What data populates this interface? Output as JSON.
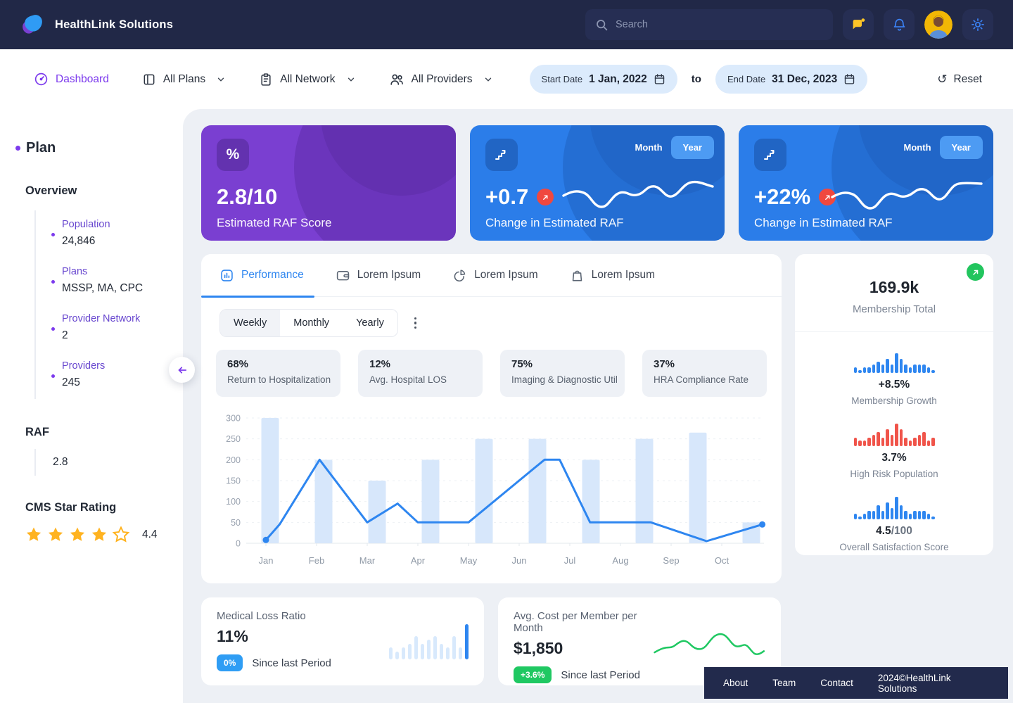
{
  "nav": {
    "brand": "HealthLink Solutions",
    "search_placeholder": "Search"
  },
  "filters": {
    "dashboard": "Dashboard",
    "all_plans": "All Plans",
    "all_network": "All Network",
    "all_providers": "All Providers",
    "start_date_label": "Start Date",
    "start_date_value": "1 Jan, 2022",
    "to_label": "to",
    "end_date_label": "End Date",
    "end_date_value": "31 Dec, 2023",
    "reset_label": "Reset"
  },
  "sidebar": {
    "title": "Plan",
    "section": "Overview",
    "items": [
      {
        "label": "Population",
        "value": "24,846"
      },
      {
        "label": "Plans",
        "value": "MSSP,  MA, CPC"
      },
      {
        "label": "Provider Network",
        "value": "2"
      },
      {
        "label": "Providers",
        "value": "245"
      }
    ],
    "raf_title": "RAF",
    "raf_value": "2.8",
    "cms_title": "CMS Star Rating",
    "cms_rating": 4.4,
    "cms_value": "4.4",
    "star_color": "#ffb320"
  },
  "stat_cards": [
    {
      "icon_glyph": "%",
      "value": "2.8/10",
      "label": "Estimated RAF Score"
    },
    {
      "value": "+0.7",
      "label": "Change in Estimated RAF",
      "month_label": "Month",
      "year_label": "Year"
    },
    {
      "value": "+22%",
      "label": "Change in Estimated RAF",
      "month_label": "Month",
      "year_label": "Year"
    }
  ],
  "performance": {
    "tabs": [
      {
        "label": "Performance"
      },
      {
        "label": "Lorem Ipsum"
      },
      {
        "label": "Lorem Ipsum"
      },
      {
        "label": "Lorem Ipsum"
      }
    ],
    "period_options": [
      "Weekly",
      "Monthly",
      "Yearly"
    ],
    "kpis": [
      {
        "value": "68%",
        "label": "Return to Hospitalization"
      },
      {
        "value": "12%",
        "label": "Avg. Hospital LOS"
      },
      {
        "value": "75%",
        "label": "Imaging & Diagnostic Util"
      },
      {
        "value": "37%",
        "label": "HRA Compliance Rate"
      }
    ]
  },
  "chart_data": {
    "type": "line+bar",
    "months": [
      "Jan",
      "Feb",
      "Mar",
      "Apr",
      "May",
      "Jun",
      "Jul",
      "Aug",
      "Sep",
      "Oct"
    ],
    "y_ticks": [
      0,
      50,
      100,
      150,
      200,
      250,
      300
    ],
    "ylim": [
      0,
      300
    ],
    "grid": "dashed-horizontal",
    "bar_values": [
      300,
      200,
      150,
      200,
      250,
      250,
      200,
      250,
      265,
      50
    ],
    "line_points_month_value": [
      [
        0,
        8
      ],
      [
        0.27,
        45
      ],
      [
        1.06,
        200
      ],
      [
        2.0,
        50
      ],
      [
        2.6,
        95
      ],
      [
        3.0,
        50
      ],
      [
        4.0,
        50
      ],
      [
        5.5,
        200
      ],
      [
        5.8,
        200
      ],
      [
        6.4,
        50
      ],
      [
        7.6,
        50
      ],
      [
        8.7,
        5
      ],
      [
        9.8,
        45
      ]
    ],
    "line_color": "#2e86f0",
    "bar_color": "#d7e7fb"
  },
  "membership": {
    "total": "169.9k",
    "total_label": "Membership Total",
    "stats": [
      {
        "value": "+8.5%",
        "suffix": "",
        "label": "Membership Growth",
        "color": "#2e86f0",
        "bars": [
          2,
          1,
          2,
          2,
          3,
          4,
          3,
          5,
          3,
          7,
          5,
          3,
          2,
          3,
          3,
          3,
          2,
          1
        ]
      },
      {
        "value": "3.7%",
        "suffix": "",
        "label": "High Risk Population",
        "color": "#f0544a",
        "bars": [
          3,
          2,
          2,
          3,
          4,
          5,
          3,
          6,
          4,
          8,
          6,
          3,
          2,
          3,
          4,
          5,
          2,
          3
        ]
      },
      {
        "value": "4.5",
        "suffix": "/100",
        "label": "Overall Satisfaction Score",
        "color": "#2e86f0",
        "bars": [
          2,
          1,
          2,
          3,
          3,
          5,
          3,
          6,
          4,
          8,
          5,
          3,
          2,
          3,
          3,
          3,
          2,
          1
        ]
      }
    ]
  },
  "bottom_cards": [
    {
      "title": "Medical Loss Ratio",
      "value": "11%",
      "badge": "0%",
      "badge_color": "#2f9df4",
      "note": "Since last Period",
      "bars": [
        3,
        2,
        3,
        4,
        6,
        4,
        5,
        6,
        4,
        3,
        6,
        3,
        8
      ],
      "bars_color": "#d8e9fc",
      "bars_accent": "#2e86f0"
    },
    {
      "title": "Avg. Cost per Member per Month",
      "value": "$1,850",
      "badge": "+3.6%",
      "badge_color": "#1fc862",
      "note": "Since last Period",
      "line_color": "#1fc862"
    }
  ],
  "footer": {
    "links": [
      "About",
      "Team",
      "Contact"
    ],
    "copyright": "2024©HealthLink Solutions"
  }
}
